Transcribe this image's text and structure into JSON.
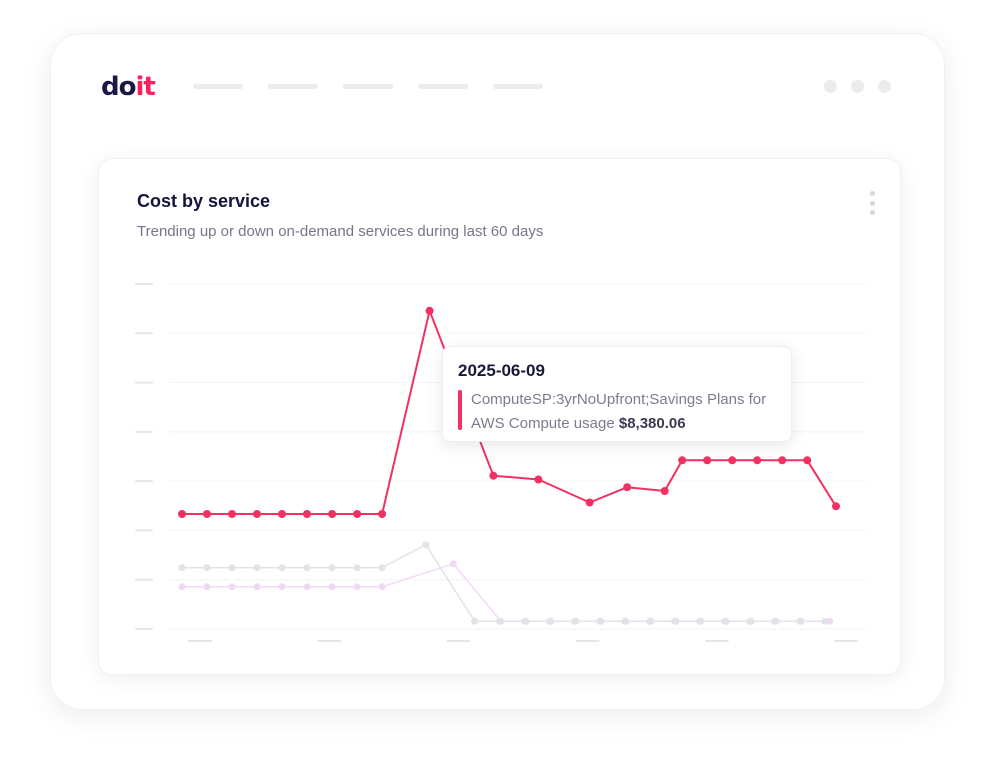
{
  "header": {
    "logo": {
      "part1": "do",
      "part2": "it"
    },
    "nav_placeholder_count": 5,
    "window_dot_count": 3
  },
  "card": {
    "title": "Cost by service",
    "subtitle": "Trending up or down on-demand services during last 60 days",
    "menu_icon": "kebab-menu-icon"
  },
  "tooltip": {
    "date": "2025-06-09",
    "series_label": "ComputeSP:3yrNoUpfront;Savings Plans for AWS Compute usage",
    "value": "$8,380.06",
    "color": "#f23062"
  },
  "chart_data": {
    "type": "line",
    "y_gridlines": 8,
    "x_tick_count": 6,
    "series": [
      {
        "color": "#f23062",
        "points": [
          [
            0,
            0.3
          ],
          [
            1,
            0.3
          ],
          [
            2,
            0.3
          ],
          [
            3,
            0.3
          ],
          [
            4,
            0.3
          ],
          [
            5,
            0.3
          ],
          [
            6,
            0.3
          ],
          [
            7,
            0.3
          ],
          [
            8,
            0.3
          ],
          [
            9.9,
            0.83
          ],
          [
            12.45,
            0.4
          ],
          [
            14.25,
            0.39
          ],
          [
            16.3,
            0.33
          ],
          [
            17.8,
            0.37
          ],
          [
            19.3,
            0.36
          ],
          [
            20.0,
            0.44
          ],
          [
            21,
            0.44
          ],
          [
            22,
            0.44
          ],
          [
            23,
            0.44
          ],
          [
            24,
            0.44
          ],
          [
            25,
            0.44
          ],
          [
            26.15,
            0.32
          ]
        ]
      },
      {
        "color": "#e3e3e7",
        "points": [
          [
            0,
            0.16
          ],
          [
            1,
            0.16
          ],
          [
            2,
            0.16
          ],
          [
            3,
            0.16
          ],
          [
            4,
            0.16
          ],
          [
            5,
            0.16
          ],
          [
            6,
            0.16
          ],
          [
            7,
            0.16
          ],
          [
            8,
            0.16
          ],
          [
            9.75,
            0.22
          ],
          [
            11.7,
            0.02
          ],
          [
            12.7,
            0.02
          ],
          [
            13.7,
            0.02
          ],
          [
            14.7,
            0.02
          ],
          [
            15.7,
            0.02
          ],
          [
            16.7,
            0.02
          ],
          [
            17.7,
            0.02
          ],
          [
            18.7,
            0.02
          ],
          [
            19.7,
            0.02
          ],
          [
            20.7,
            0.02
          ],
          [
            21.7,
            0.02
          ],
          [
            22.7,
            0.02
          ],
          [
            23.7,
            0.02
          ],
          [
            24.7,
            0.02
          ],
          [
            25.7,
            0.02
          ]
        ]
      },
      {
        "color": "#f1d9f4",
        "points": [
          [
            0,
            0.11
          ],
          [
            1,
            0.11
          ],
          [
            2,
            0.11
          ],
          [
            3,
            0.11
          ],
          [
            4,
            0.11
          ],
          [
            5,
            0.11
          ],
          [
            6,
            0.11
          ],
          [
            7,
            0.11
          ],
          [
            8,
            0.11
          ],
          [
            10.85,
            0.17
          ],
          [
            12.75,
            0.02
          ],
          [
            13.75,
            0.02
          ],
          [
            14.75,
            0.02
          ],
          [
            15.75,
            0.02
          ],
          [
            16.75,
            0.02
          ],
          [
            17.75,
            0.02
          ],
          [
            18.75,
            0.02
          ],
          [
            19.75,
            0.02
          ],
          [
            20.75,
            0.02
          ],
          [
            21.75,
            0.02
          ],
          [
            22.75,
            0.02
          ],
          [
            23.75,
            0.02
          ],
          [
            24.75,
            0.02
          ],
          [
            25.9,
            0.02
          ]
        ]
      }
    ],
    "highlight": {
      "series": 0,
      "index": 9
    }
  }
}
